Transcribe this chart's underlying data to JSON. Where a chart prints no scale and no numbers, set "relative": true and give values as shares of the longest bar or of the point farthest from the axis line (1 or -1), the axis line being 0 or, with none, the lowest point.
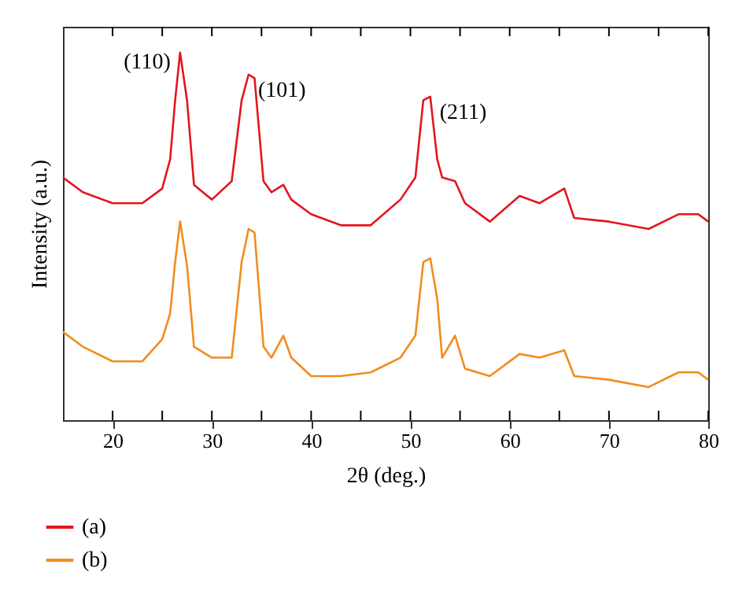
{
  "chart_data": {
    "type": "line",
    "relative": true,
    "xlabel": "2θ (deg.)",
    "ylabel": "Intensity (a.u.)",
    "xlim": [
      15,
      80
    ],
    "xticks": [
      20,
      {
        "value": 25,
        "label": null
      },
      30,
      {
        "value": 35,
        "label": null
      },
      40,
      {
        "value": 45,
        "label": null
      },
      50,
      {
        "value": 55,
        "label": null
      },
      60,
      {
        "value": 65,
        "label": null
      },
      70,
      {
        "value": 75,
        "label": null
      },
      80
    ],
    "x": [
      15,
      17,
      20,
      23,
      25,
      25.8,
      26.3,
      26.8,
      27.5,
      28.2,
      30,
      32,
      33,
      33.7,
      34.3,
      35.2,
      36,
      37.2,
      38,
      40,
      43,
      46,
      49,
      50.5,
      51.3,
      52,
      52.7,
      53.2,
      54.5,
      55.5,
      58,
      61,
      63,
      65.5,
      66.5,
      70,
      74,
      77,
      79,
      80
    ],
    "series": [
      {
        "name": "(a)",
        "color": "#e3161e",
        "values": [
          0.66,
          0.62,
          0.59,
          0.59,
          0.63,
          0.71,
          0.87,
          1.0,
          0.87,
          0.64,
          0.6,
          0.65,
          0.87,
          0.94,
          0.93,
          0.65,
          0.62,
          0.64,
          0.6,
          0.56,
          0.53,
          0.53,
          0.6,
          0.66,
          0.87,
          0.88,
          0.71,
          0.66,
          0.65,
          0.59,
          0.54,
          0.61,
          0.59,
          0.63,
          0.55,
          0.54,
          0.52,
          0.56,
          0.56,
          0.54
        ]
      },
      {
        "name": "(b)",
        "color": "#f28c1e",
        "values": [
          0.24,
          0.2,
          0.16,
          0.16,
          0.22,
          0.29,
          0.43,
          0.54,
          0.42,
          0.2,
          0.17,
          0.17,
          0.43,
          0.52,
          0.51,
          0.2,
          0.17,
          0.23,
          0.17,
          0.12,
          0.12,
          0.13,
          0.17,
          0.23,
          0.43,
          0.44,
          0.33,
          0.17,
          0.23,
          0.14,
          0.12,
          0.18,
          0.17,
          0.19,
          0.12,
          0.11,
          0.09,
          0.13,
          0.13,
          0.11
        ]
      }
    ],
    "annotations": [
      {
        "text": "(110)",
        "x": 26.8,
        "y": 1.0
      },
      {
        "text": "(101)",
        "x": 33.7,
        "y": 0.94
      },
      {
        "text": "(211)",
        "x": 52,
        "y": 0.88
      }
    ],
    "legend": "bottom left",
    "grid": false,
    "marker": "none",
    "line_style": "solid"
  }
}
